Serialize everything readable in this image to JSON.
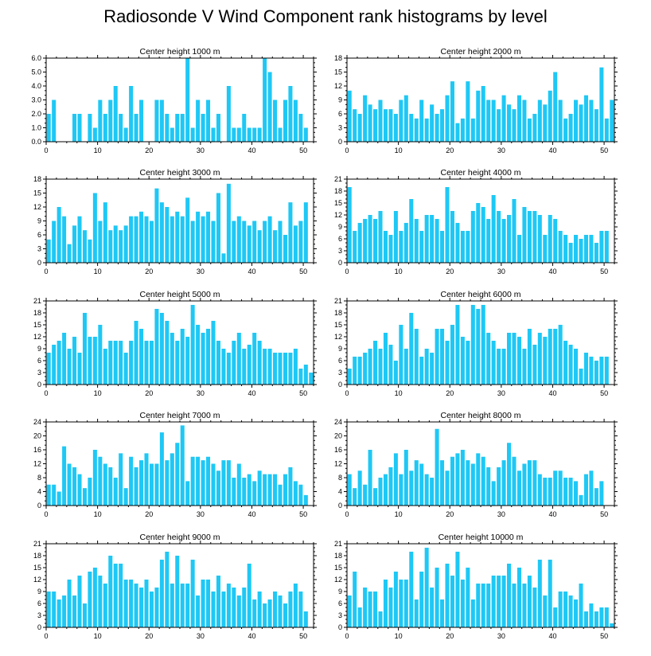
{
  "title": "Radiosonde V Wind Component rank histograms by level",
  "bar_color": "#1ec8f5",
  "chart_data": [
    {
      "type": "bar",
      "title": "Center height 1000 m",
      "xlim": [
        0,
        52
      ],
      "ylim": [
        0,
        6
      ],
      "yticks": [
        0.0,
        1.0,
        2.0,
        3.0,
        4.0,
        5.0,
        6.0
      ],
      "ytick_labels": [
        "0.0",
        "1.0",
        "2.0",
        "3.0",
        "4.0",
        "5.0",
        "6.0"
      ],
      "xticks": [
        0,
        10,
        20,
        30,
        40,
        50
      ],
      "xtick_labels": [
        "0",
        "10",
        "20",
        "30",
        "40",
        "50"
      ],
      "values": [
        2,
        3,
        0,
        0,
        0,
        2,
        2,
        0,
        2,
        1,
        3,
        2,
        3,
        4,
        2,
        1,
        4,
        2,
        3,
        0,
        0,
        3,
        3,
        2,
        1,
        2,
        2,
        6,
        1,
        3,
        2,
        3,
        1,
        2,
        0,
        4,
        1,
        1,
        2,
        1,
        1,
        1,
        6,
        5,
        3,
        1,
        3,
        4,
        3,
        2,
        1
      ]
    },
    {
      "type": "bar",
      "title": "Center height 2000 m",
      "xlim": [
        0,
        52
      ],
      "ylim": [
        0,
        18
      ],
      "yticks": [
        0,
        3,
        6,
        9,
        12,
        15,
        18
      ],
      "ytick_labels": [
        "0",
        "3",
        "6",
        "9",
        "12",
        "15",
        "18"
      ],
      "xticks": [
        0,
        10,
        20,
        30,
        40,
        50
      ],
      "xtick_labels": [
        "0",
        "10",
        "20",
        "30",
        "40",
        "50"
      ],
      "values": [
        11,
        7,
        6,
        10,
        8,
        7,
        9,
        7,
        7,
        6,
        9,
        10,
        6,
        5,
        9,
        5,
        8,
        6,
        7,
        10,
        13,
        4,
        5,
        13,
        5,
        11,
        12,
        9,
        9,
        7,
        10,
        8,
        7,
        10,
        9,
        5,
        6,
        9,
        8,
        11,
        15,
        9,
        5,
        6,
        9,
        8,
        10,
        9,
        7,
        16,
        5,
        9
      ]
    },
    {
      "type": "bar",
      "title": "Center height 3000 m",
      "xlim": [
        0,
        52
      ],
      "ylim": [
        0,
        18
      ],
      "yticks": [
        0,
        3,
        6,
        9,
        12,
        15,
        18
      ],
      "ytick_labels": [
        "0",
        "3",
        "6",
        "9",
        "12",
        "15",
        "18"
      ],
      "xticks": [
        0,
        10,
        20,
        30,
        40,
        50
      ],
      "xtick_labels": [
        "0",
        "10",
        "20",
        "30",
        "40",
        "50"
      ],
      "values": [
        5,
        9,
        12,
        10,
        4,
        8,
        10,
        7,
        5,
        15,
        9,
        13,
        7,
        8,
        7,
        8,
        10,
        10,
        11,
        10,
        9,
        16,
        13,
        12,
        10,
        11,
        10,
        14,
        9,
        11,
        10,
        11,
        9,
        15,
        2,
        17,
        9,
        10,
        9,
        8,
        9,
        7,
        9,
        10,
        7,
        9,
        6,
        13,
        8,
        9,
        13
      ]
    },
    {
      "type": "bar",
      "title": "Center height 4000 m",
      "xlim": [
        0,
        52
      ],
      "ylim": [
        0,
        21
      ],
      "yticks": [
        0,
        3,
        6,
        9,
        12,
        15,
        18,
        21
      ],
      "ytick_labels": [
        "0",
        "3",
        "6",
        "9",
        "12",
        "15",
        "18",
        "21"
      ],
      "xticks": [
        0,
        10,
        20,
        30,
        40,
        50
      ],
      "xtick_labels": [
        "0",
        "10",
        "20",
        "30",
        "40",
        "50"
      ],
      "values": [
        19,
        8,
        10,
        11,
        12,
        11,
        13,
        8,
        7,
        13,
        8,
        10,
        16,
        11,
        8,
        12,
        12,
        11,
        8,
        19,
        13,
        10,
        8,
        8,
        13,
        15,
        14,
        11,
        17,
        13,
        11,
        12,
        16,
        7,
        14,
        13,
        13,
        12,
        7,
        12,
        11,
        8,
        7,
        5,
        7,
        6,
        7,
        7,
        5,
        8,
        8
      ]
    },
    {
      "type": "bar",
      "title": "Center height 5000 m",
      "xlim": [
        0,
        52
      ],
      "ylim": [
        0,
        21
      ],
      "yticks": [
        0,
        3,
        6,
        9,
        12,
        15,
        18,
        21
      ],
      "ytick_labels": [
        "0",
        "3",
        "6",
        "9",
        "12",
        "15",
        "18",
        "21"
      ],
      "xticks": [
        0,
        10,
        20,
        30,
        40,
        50
      ],
      "xtick_labels": [
        "0",
        "10",
        "20",
        "30",
        "40",
        "50"
      ],
      "values": [
        8,
        10,
        11,
        13,
        9,
        12,
        8,
        18,
        12,
        12,
        15,
        9,
        11,
        11,
        11,
        8,
        11,
        16,
        14,
        11,
        11,
        19,
        18,
        16,
        13,
        11,
        14,
        12,
        20,
        15,
        13,
        14,
        16,
        11,
        9,
        8,
        11,
        13,
        9,
        10,
        13,
        11,
        9,
        9,
        8,
        8,
        8,
        8,
        9,
        4,
        5,
        3
      ]
    },
    {
      "type": "bar",
      "title": "Center height 6000 m",
      "xlim": [
        0,
        52
      ],
      "ylim": [
        0,
        21
      ],
      "yticks": [
        0,
        3,
        6,
        9,
        12,
        15,
        18,
        21
      ],
      "ytick_labels": [
        "0",
        "3",
        "6",
        "9",
        "12",
        "15",
        "18",
        "21"
      ],
      "xticks": [
        0,
        10,
        20,
        30,
        40,
        50
      ],
      "xtick_labels": [
        "0",
        "10",
        "20",
        "30",
        "40",
        "50"
      ],
      "values": [
        4,
        7,
        7,
        8,
        9,
        11,
        9,
        13,
        10,
        6,
        15,
        9,
        18,
        14,
        7,
        9,
        8,
        14,
        14,
        11,
        15,
        20,
        12,
        11,
        20,
        19,
        20,
        13,
        11,
        9,
        9,
        13,
        13,
        12,
        9,
        14,
        10,
        13,
        12,
        14,
        14,
        15,
        11,
        10,
        9,
        4,
        8,
        7,
        6,
        7,
        7
      ]
    },
    {
      "type": "bar",
      "title": "Center height 7000 m",
      "xlim": [
        0,
        52
      ],
      "ylim": [
        0,
        24
      ],
      "yticks": [
        0,
        4,
        8,
        12,
        16,
        20,
        24
      ],
      "ytick_labels": [
        "0",
        "4",
        "8",
        "12",
        "16",
        "20",
        "24"
      ],
      "xticks": [
        0,
        10,
        20,
        30,
        40,
        50
      ],
      "xtick_labels": [
        "0",
        "10",
        "20",
        "30",
        "40",
        "50"
      ],
      "values": [
        6,
        6,
        4,
        17,
        12,
        11,
        9,
        5,
        8,
        16,
        14,
        12,
        11,
        8,
        15,
        5,
        14,
        11,
        13,
        15,
        12,
        12,
        21,
        13,
        15,
        18,
        23,
        7,
        14,
        14,
        13,
        14,
        12,
        10,
        13,
        13,
        8,
        12,
        8,
        9,
        7,
        10,
        9,
        9,
        9,
        6,
        9,
        11,
        7,
        6,
        3
      ]
    },
    {
      "type": "bar",
      "title": "Center height 8000 m",
      "xlim": [
        0,
        52
      ],
      "ylim": [
        0,
        24
      ],
      "yticks": [
        0,
        4,
        8,
        12,
        16,
        20,
        24
      ],
      "ytick_labels": [
        "0",
        "4",
        "8",
        "12",
        "16",
        "20",
        "24"
      ],
      "xticks": [
        0,
        10,
        20,
        30,
        40,
        50
      ],
      "xtick_labels": [
        "0",
        "10",
        "20",
        "30",
        "40",
        "50"
      ],
      "values": [
        9,
        5,
        10,
        6,
        16,
        5,
        8,
        9,
        11,
        15,
        9,
        16,
        10,
        13,
        12,
        9,
        8,
        22,
        13,
        10,
        14,
        15,
        16,
        13,
        12,
        15,
        14,
        11,
        7,
        11,
        13,
        18,
        14,
        10,
        12,
        13,
        13,
        9,
        8,
        8,
        10,
        10,
        8,
        8,
        7,
        3,
        9,
        10,
        5,
        7
      ]
    },
    {
      "type": "bar",
      "title": "Center height 9000 m",
      "xlim": [
        0,
        52
      ],
      "ylim": [
        0,
        21
      ],
      "yticks": [
        0,
        3,
        6,
        9,
        12,
        15,
        18,
        21
      ],
      "ytick_labels": [
        "0",
        "3",
        "6",
        "9",
        "12",
        "15",
        "18",
        "21"
      ],
      "xticks": [
        0,
        10,
        20,
        30,
        40,
        50
      ],
      "xtick_labels": [
        "0",
        "10",
        "20",
        "30",
        "40",
        "50"
      ],
      "values": [
        9,
        9,
        7,
        8,
        12,
        8,
        13,
        6,
        14,
        15,
        13,
        11,
        18,
        16,
        16,
        12,
        12,
        11,
        10,
        12,
        9,
        10,
        17,
        19,
        11,
        18,
        11,
        11,
        17,
        8,
        12,
        12,
        9,
        13,
        9,
        11,
        10,
        8,
        10,
        16,
        7,
        9,
        6,
        7,
        9,
        8,
        6,
        9,
        11,
        9,
        4
      ]
    },
    {
      "type": "bar",
      "title": "Center height 10000 m",
      "xlim": [
        0,
        52
      ],
      "ylim": [
        0,
        21
      ],
      "yticks": [
        0,
        3,
        6,
        9,
        12,
        15,
        18,
        21
      ],
      "ytick_labels": [
        "0",
        "3",
        "6",
        "9",
        "12",
        "15",
        "18",
        "21"
      ],
      "xticks": [
        0,
        10,
        20,
        30,
        40,
        50
      ],
      "xtick_labels": [
        "0",
        "10",
        "20",
        "30",
        "40",
        "50"
      ],
      "values": [
        8,
        14,
        5,
        10,
        9,
        9,
        4,
        12,
        10,
        14,
        12,
        12,
        19,
        7,
        14,
        20,
        10,
        15,
        7,
        16,
        13,
        19,
        12,
        15,
        7,
        11,
        11,
        11,
        13,
        13,
        13,
        16,
        11,
        15,
        11,
        13,
        10,
        17,
        8,
        17,
        5,
        9,
        9,
        8,
        7,
        11,
        4,
        6,
        4,
        5,
        5,
        1
      ]
    }
  ]
}
